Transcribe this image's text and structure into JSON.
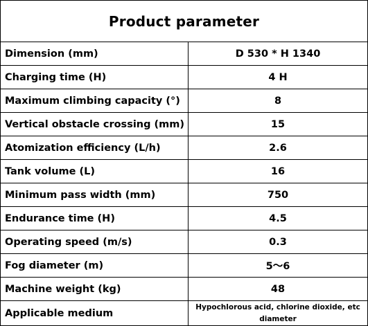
{
  "table": {
    "title": "Product parameter",
    "rows": [
      {
        "label": "Dimension (mm)",
        "value": "D 530 * H 1340"
      },
      {
        "label": "Charging time (H)",
        "value": "4 H"
      },
      {
        "label": "Maximum climbing capacity (°)",
        "value": "8"
      },
      {
        "label": "Vertical obstacle crossing (mm)",
        "value": "15"
      },
      {
        "label": "Atomization efficiency (L/h)",
        "value": "2.6"
      },
      {
        "label": "Tank volume (L)",
        "value": "16"
      },
      {
        "label": "Minimum pass width (mm)",
        "value": "750"
      },
      {
        "label": "Endurance time (H)",
        "value": "4.5"
      },
      {
        "label": "Operating speed (m/s)",
        "value": "0.3"
      },
      {
        "label": "Fog diameter (m)",
        "value": "5～6"
      },
      {
        "label": "Machine weight (kg)",
        "value": "48"
      },
      {
        "label": "Applicable medium",
        "value": "Hypochlorous acid, chlorine dioxide, etc diameter"
      }
    ]
  }
}
